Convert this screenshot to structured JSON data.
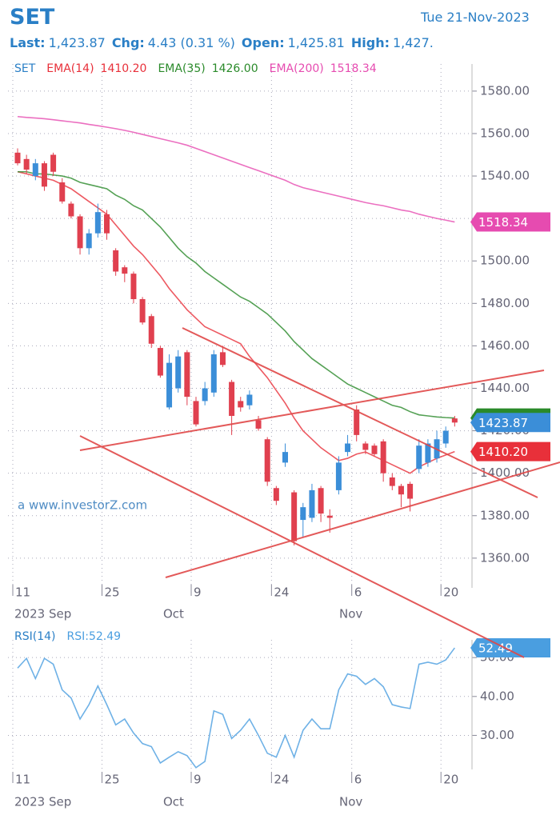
{
  "header": {
    "symbol": "SET",
    "date": "Tue 21-Nov-2023",
    "stats": [
      {
        "label": "Last:",
        "value": "1,423.87"
      },
      {
        "label": "Chg:",
        "value": "4.43 (0.31 %)"
      },
      {
        "label": "Open:",
        "value": "1,425.81"
      },
      {
        "label": "High:",
        "value": "1,427."
      }
    ]
  },
  "chart_data": [
    {
      "type": "candlestick",
      "legend_symbol": "SET",
      "watermark": "a www.investorZ.com",
      "categories": [
        "11",
        null,
        null,
        null,
        null,
        null,
        null,
        null,
        null,
        null,
        "25",
        null,
        null,
        null,
        null,
        null,
        null,
        null,
        null,
        null,
        "9",
        null,
        null,
        null,
        null,
        null,
        null,
        null,
        null,
        "24",
        null,
        null,
        null,
        null,
        null,
        null,
        null,
        null,
        "6",
        null,
        null,
        null,
        null,
        null,
        null,
        null,
        null,
        null,
        "20",
        null
      ],
      "period_labels": [
        "2023 Sep",
        "Oct",
        "Nov"
      ],
      "open": [
        1551,
        1548,
        1540,
        1546,
        1550,
        1537,
        1527,
        1521,
        1506,
        1513,
        1522,
        1505,
        1497,
        1494,
        1482,
        1474,
        1459,
        1431,
        1440,
        1457,
        1434,
        1434,
        1438,
        1457,
        1443,
        1434,
        1432,
        1425,
        1416,
        1393,
        1405,
        1391,
        1378,
        1379,
        1393,
        1380,
        1392,
        1410,
        1430,
        1414,
        1413,
        1415,
        1398,
        1394,
        1395,
        1402,
        1405,
        1407,
        1414,
        1425.81
      ],
      "high": [
        1553,
        1550,
        1548,
        1547,
        1551,
        1539,
        1528,
        1522,
        1515,
        1527,
        1524,
        1506,
        1498,
        1495,
        1483,
        1475,
        1460,
        1456,
        1458,
        1458,
        1436,
        1443,
        1458,
        1460,
        1444,
        1436,
        1439,
        1427,
        1417,
        1394,
        1414,
        1392,
        1386,
        1395,
        1394,
        1383,
        1408,
        1418,
        1432,
        1415,
        1414,
        1416,
        1400,
        1395,
        1396,
        1416,
        1416,
        1420,
        1422,
        1427
      ],
      "low": [
        1545,
        1541,
        1538,
        1533,
        1540,
        1527,
        1520,
        1503,
        1503,
        1511,
        1510,
        1493,
        1490,
        1480,
        1470,
        1459,
        1445,
        1430,
        1438,
        1432,
        1422,
        1432,
        1436,
        1450,
        1418,
        1429,
        1430,
        1420,
        1394,
        1385,
        1403,
        1366,
        1370,
        1377,
        1377,
        1372,
        1390,
        1408,
        1415,
        1409,
        1408,
        1396,
        1392,
        1384,
        1382,
        1400,
        1403,
        1405,
        1412,
        1422
      ],
      "close": [
        1546,
        1543,
        1546,
        1535,
        1542,
        1528,
        1521,
        1506,
        1513,
        1523,
        1513,
        1495,
        1494,
        1482,
        1471,
        1461,
        1446,
        1452,
        1455,
        1436,
        1423,
        1440,
        1456,
        1451,
        1427,
        1431,
        1437,
        1421,
        1396,
        1387,
        1410,
        1368,
        1384,
        1392,
        1381,
        1379,
        1405,
        1414,
        1418,
        1411,
        1409,
        1400,
        1394,
        1390,
        1388,
        1413,
        1414,
        1416,
        1420,
        1423.87
      ],
      "close_labels": [
        null,
        null,
        null,
        null,
        null,
        null,
        null,
        null,
        null,
        null,
        null,
        null,
        null,
        null,
        null,
        null,
        null,
        null,
        null,
        null,
        null,
        null,
        null,
        null,
        null,
        null,
        null,
        null,
        null,
        null,
        null,
        null,
        null,
        null,
        null,
        null,
        null,
        null,
        null,
        null,
        null,
        null,
        null,
        null,
        null,
        null,
        null,
        null,
        null,
        "1423.87"
      ],
      "color_up": "#3b8ed8",
      "color_down": "#e0404f",
      "close_label_color": "#3b8ed8",
      "series": [
        {
          "name": "EMA(14)",
          "color": "#e8303a",
          "values": [
            1542,
            1541,
            1540,
            1539,
            1538,
            1536,
            1534,
            1531,
            1528,
            1525,
            1522,
            1517,
            1512,
            1507,
            1503,
            1498,
            1493,
            1487,
            1482,
            1477,
            1473,
            1469,
            1467,
            1465,
            1463,
            1461,
            1455,
            1450,
            1445,
            1439,
            1433,
            1426,
            1420,
            1416,
            1412,
            1409,
            1406,
            1407,
            1409,
            1410,
            1408,
            1406,
            1404,
            1402,
            1400,
            1403,
            1405,
            1407,
            1408.6,
            1410.2
          ],
          "value_labels": [
            null,
            null,
            null,
            null,
            null,
            null,
            null,
            null,
            null,
            null,
            null,
            null,
            null,
            null,
            null,
            null,
            null,
            null,
            null,
            null,
            null,
            null,
            null,
            null,
            null,
            null,
            null,
            null,
            null,
            null,
            null,
            null,
            null,
            null,
            null,
            null,
            null,
            null,
            null,
            null,
            null,
            null,
            null,
            null,
            null,
            null,
            null,
            null,
            null,
            "1410.20"
          ]
        },
        {
          "name": "EMA(35)",
          "color": "#2a8a2a",
          "values": [
            1542,
            1542,
            1541,
            1541,
            1540.5,
            1540,
            1539,
            1537,
            1536,
            1535,
            1534,
            1531,
            1529,
            1526,
            1524,
            1520,
            1516,
            1511,
            1506,
            1502,
            1499,
            1495,
            1492,
            1489,
            1486,
            1483,
            1481,
            1478,
            1475,
            1471,
            1467,
            1462,
            1458,
            1454,
            1451,
            1448,
            1445,
            1442,
            1440,
            1438,
            1436,
            1434,
            1432,
            1431,
            1429,
            1427.5,
            1427,
            1426.5,
            1426.2,
            1426
          ],
          "value_labels": [
            null,
            null,
            null,
            null,
            null,
            null,
            null,
            null,
            null,
            null,
            null,
            null,
            null,
            null,
            null,
            null,
            null,
            null,
            null,
            null,
            null,
            null,
            null,
            null,
            null,
            null,
            null,
            null,
            null,
            null,
            null,
            null,
            null,
            null,
            null,
            null,
            null,
            null,
            null,
            null,
            null,
            null,
            null,
            null,
            null,
            null,
            null,
            null,
            null,
            "1426.00"
          ]
        },
        {
          "name": "EMA(200)",
          "color": "#e64bb0",
          "values": [
            1568,
            1567.6,
            1567.3,
            1567,
            1566.5,
            1566,
            1565.5,
            1565,
            1564.3,
            1563.7,
            1563,
            1562.3,
            1561.5,
            1560.6,
            1559.6,
            1558.6,
            1557.6,
            1556.6,
            1555.6,
            1554.5,
            1553,
            1551.5,
            1550,
            1548.5,
            1547,
            1545.5,
            1544,
            1542.5,
            1541,
            1539.5,
            1538,
            1536,
            1534.5,
            1533.5,
            1532.5,
            1531.5,
            1530.5,
            1529.5,
            1528.5,
            1527.5,
            1526.7,
            1526,
            1525,
            1524,
            1523.3,
            1522,
            1521,
            1520,
            1519.2,
            1518.34
          ],
          "value_labels": [
            null,
            null,
            null,
            null,
            null,
            null,
            null,
            null,
            null,
            null,
            null,
            null,
            null,
            null,
            null,
            null,
            null,
            null,
            null,
            null,
            null,
            null,
            null,
            null,
            null,
            null,
            null,
            null,
            null,
            null,
            null,
            null,
            null,
            null,
            null,
            null,
            null,
            null,
            null,
            null,
            null,
            null,
            null,
            null,
            null,
            null,
            null,
            null,
            null,
            "1518.34"
          ]
        }
      ],
      "ylim": [
        1346,
        1589
      ],
      "yticks": [
        {
          "value": 1360,
          "label": "1360.00"
        },
        {
          "value": 1380,
          "label": "1380.00"
        },
        {
          "value": 1400,
          "label": "1400.00"
        },
        {
          "value": 1420,
          "label": "1420.00"
        },
        {
          "value": 1440,
          "label": "1440.00"
        },
        {
          "value": 1460,
          "label": "1460.00"
        },
        {
          "value": 1480,
          "label": "1480.00"
        },
        {
          "value": 1500,
          "label": "1500.00"
        },
        {
          "value": 1520,
          "label": "1520.00"
        },
        {
          "value": 1540,
          "label": "1540.00"
        },
        {
          "value": 1560,
          "label": "1560.00"
        },
        {
          "value": 1580,
          "label": "1580.00"
        }
      ],
      "grid": true
    },
    {
      "type": "line",
      "title": "RSI(14)",
      "categories": [
        "11",
        null,
        null,
        null,
        null,
        null,
        null,
        null,
        null,
        null,
        "25",
        null,
        null,
        null,
        null,
        null,
        null,
        null,
        null,
        null,
        "9",
        null,
        null,
        null,
        null,
        null,
        null,
        null,
        null,
        "24",
        null,
        null,
        null,
        null,
        null,
        null,
        null,
        null,
        "6",
        null,
        null,
        null,
        null,
        null,
        null,
        null,
        null,
        null,
        "20",
        null
      ],
      "period_labels": [
        "2023 Sep",
        "Oct",
        "Nov"
      ],
      "series": [
        {
          "name": "RSI:",
          "color": "#4a9ee0",
          "values": [
            47.3,
            49.8,
            44.6,
            49.8,
            48.3,
            41.7,
            39.6,
            34.2,
            37.9,
            42.7,
            37.9,
            32.7,
            34.2,
            30.6,
            27.9,
            27.1,
            22.9,
            24.4,
            25.8,
            24.8,
            21.7,
            23.3,
            36.3,
            35.4,
            29.2,
            31.3,
            34.2,
            30.0,
            25.4,
            24.4,
            30.0,
            24.4,
            31.3,
            34.2,
            31.7,
            31.7,
            41.7,
            45.8,
            45.2,
            43.1,
            44.6,
            42.5,
            37.9,
            37.3,
            36.9,
            48.3,
            48.8,
            48.3,
            49.4,
            52.49
          ],
          "value_labels": [
            null,
            null,
            null,
            null,
            null,
            null,
            null,
            null,
            null,
            null,
            null,
            null,
            null,
            null,
            null,
            null,
            null,
            null,
            null,
            null,
            null,
            null,
            null,
            null,
            null,
            null,
            null,
            null,
            null,
            null,
            null,
            null,
            null,
            null,
            null,
            null,
            null,
            null,
            null,
            null,
            null,
            null,
            null,
            null,
            null,
            null,
            null,
            null,
            null,
            "52.49"
          ]
        }
      ],
      "ylim": [
        21.25,
        52.5
      ],
      "yticks": [
        {
          "value": 30,
          "label": "30.00"
        },
        {
          "value": 40,
          "label": "40.00"
        },
        {
          "value": 50,
          "label": "50.00"
        }
      ],
      "grid": true
    }
  ]
}
